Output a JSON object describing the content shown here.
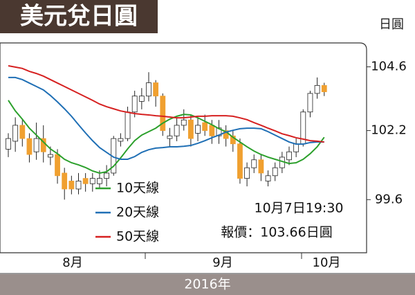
{
  "chart_data": {
    "type": "candlestick",
    "title": "美元兌日圓",
    "y_unit": "日圓",
    "ylim": [
      97.6,
      105.5
    ],
    "yticks": [
      99.6,
      102.2,
      104.6
    ],
    "months": [
      "8月",
      "9月",
      "10月"
    ],
    "year": "2016年",
    "annotation_time": "10月7日19:30",
    "annotation_quote": "報價：103.66日圓",
    "up_color": "#ffffff",
    "down_color": "#f0a030",
    "open": [
      101.5,
      101.8,
      102.4,
      101.9,
      101.4,
      101.9,
      101.2,
      101.3,
      100.6,
      100.3,
      100.0,
      100.4,
      100.2,
      100.2,
      100.4,
      100.6,
      101.8,
      101.9,
      102.9,
      103.3,
      103.5,
      104.0,
      103.5,
      101.9,
      102.0,
      102.4,
      102.6,
      102.1,
      102.5,
      102.4,
      102.0,
      102.2,
      102.0,
      101.7,
      100.4,
      100.8,
      101.1,
      100.3,
      100.5,
      100.8,
      101.1,
      101.4,
      101.7,
      102.9,
      103.6,
      103.9
    ],
    "high": [
      102.1,
      102.7,
      102.6,
      102.1,
      102.5,
      102.4,
      101.6,
      101.5,
      100.8,
      100.5,
      100.6,
      100.6,
      100.6,
      100.7,
      100.9,
      102.0,
      102.1,
      103.1,
      103.7,
      103.8,
      104.4,
      104.1,
      103.6,
      102.3,
      102.7,
      103.0,
      102.8,
      102.7,
      102.8,
      102.6,
      102.6,
      102.4,
      102.2,
      101.9,
      101.0,
      101.3,
      101.3,
      100.7,
      101.0,
      101.4,
      101.6,
      101.9,
      103.0,
      103.7,
      104.2,
      104.0
    ],
    "low": [
      101.2,
      101.4,
      101.6,
      101.0,
      101.1,
      101.0,
      100.9,
      100.2,
      99.6,
      99.8,
      99.8,
      99.9,
      99.9,
      100.0,
      100.1,
      100.5,
      101.6,
      101.8,
      102.7,
      103.0,
      103.3,
      103.1,
      102.0,
      101.6,
      101.8,
      102.2,
      101.6,
      101.8,
      102.0,
      101.7,
      101.7,
      101.6,
      101.4,
      100.2,
      100.1,
      100.6,
      100.3,
      100.1,
      100.3,
      100.6,
      100.9,
      101.2,
      101.6,
      102.7,
      103.4,
      103.5
    ],
    "close": [
      101.9,
      102.4,
      101.9,
      101.3,
      101.9,
      101.4,
      101.3,
      100.5,
      100.0,
      100.0,
      100.3,
      100.2,
      100.4,
      100.4,
      100.6,
      101.9,
      101.9,
      102.9,
      103.5,
      103.5,
      104.0,
      103.5,
      102.2,
      102.0,
      102.4,
      102.6,
      101.9,
      102.4,
      102.2,
      102.0,
      102.3,
      101.9,
      101.7,
      100.4,
      100.8,
      101.1,
      100.6,
      100.5,
      100.8,
      101.2,
      101.4,
      101.7,
      102.9,
      103.6,
      103.9,
      103.66
    ],
    "series": [
      {
        "name": "10天線",
        "color": "#2ca02c",
        "values": [
          103.34,
          102.94,
          102.63,
          102.29,
          102.03,
          101.77,
          101.51,
          101.33,
          101.12,
          100.99,
          100.91,
          100.81,
          100.68,
          100.6,
          100.65,
          100.86,
          101.17,
          101.51,
          101.82,
          102.03,
          102.16,
          102.29,
          102.48,
          102.63,
          102.74,
          102.81,
          102.79,
          102.68,
          102.55,
          102.42,
          102.27,
          102.16,
          101.95,
          101.77,
          101.59,
          101.43,
          101.3,
          101.2,
          101.12,
          101.04,
          100.96,
          100.99,
          101.12,
          101.33,
          101.59,
          101.95
        ]
      },
      {
        "name": "20天線",
        "color": "#1f6fb5",
        "values": [
          104.2,
          104.2,
          104.12,
          103.99,
          103.86,
          103.73,
          103.52,
          103.28,
          103.02,
          102.74,
          102.42,
          102.11,
          101.82,
          101.56,
          101.38,
          101.2,
          101.12,
          101.12,
          101.22,
          101.38,
          101.48,
          101.54,
          101.56,
          101.59,
          101.59,
          101.61,
          101.64,
          101.72,
          101.82,
          101.93,
          102.03,
          102.14,
          102.21,
          102.27,
          102.29,
          102.29,
          102.27,
          102.16,
          102.03,
          101.9,
          101.77,
          101.69,
          101.69,
          101.75,
          101.77,
          101.77
        ]
      },
      {
        "name": "50天線",
        "color": "#d62020",
        "values": [
          104.64,
          104.59,
          104.54,
          104.43,
          104.35,
          104.25,
          104.12,
          103.99,
          103.86,
          103.73,
          103.6,
          103.47,
          103.34,
          103.2,
          103.1,
          103.02,
          102.94,
          102.89,
          102.84,
          102.81,
          102.79,
          102.76,
          102.74,
          102.71,
          102.68,
          102.68,
          102.71,
          102.74,
          102.74,
          102.76,
          102.76,
          102.76,
          102.74,
          102.68,
          102.61,
          102.5,
          102.4,
          102.29,
          102.19,
          102.08,
          102.01,
          101.93,
          101.88,
          101.82,
          101.8,
          101.77
        ]
      }
    ]
  }
}
